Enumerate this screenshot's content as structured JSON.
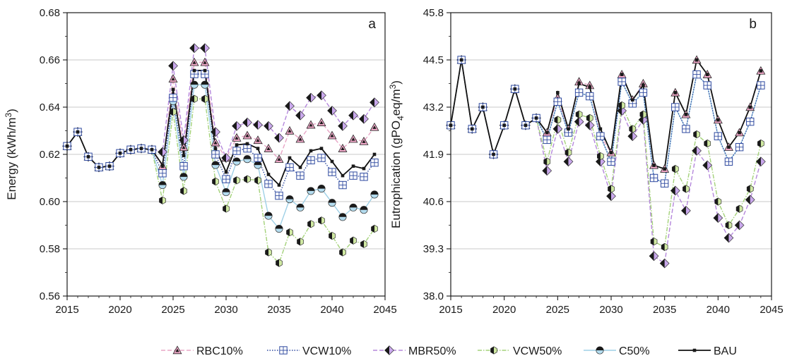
{
  "chart_data": [
    {
      "type": "line",
      "panel_label": "a",
      "title": "",
      "xlabel": "",
      "ylabel": "Energy (kWh/m3)",
      "ylabel_main": "Energy (kWh/m",
      "ylabel_sup": "3",
      "ylabel_end": ")",
      "xlim": [
        2015,
        2045
      ],
      "ylim": [
        0.56,
        0.68
      ],
      "x_ticks": [
        2015,
        2020,
        2025,
        2030,
        2035,
        2040,
        2045
      ],
      "x_tick_labels": [
        "2015",
        "2020",
        "2025",
        "2030",
        "2035",
        "2040",
        "2045"
      ],
      "y_ticks": [
        0.56,
        0.58,
        0.6,
        0.62,
        0.64,
        0.66,
        0.68
      ],
      "y_tick_labels": [
        "0.56",
        "0.58",
        "0.60",
        "0.62",
        "0.64",
        "0.66",
        "0.68"
      ],
      "grid": "horizontal",
      "x": [
        2015,
        2016,
        2017,
        2018,
        2019,
        2020,
        2021,
        2022,
        2023,
        2024,
        2025,
        2026,
        2027,
        2028,
        2029,
        2030,
        2031,
        2032,
        2033,
        2034,
        2035,
        2036,
        2037,
        2038,
        2039,
        2040,
        2041,
        2042,
        2043,
        2044
      ],
      "series": [
        {
          "name": "RBC10%",
          "values": [
            0.6235,
            0.6295,
            0.619,
            0.6145,
            0.615,
            0.6205,
            0.622,
            0.6225,
            0.622,
            0.615,
            0.652,
            0.623,
            0.659,
            0.659,
            0.625,
            0.6185,
            0.627,
            0.628,
            0.626,
            0.6225,
            0.618,
            0.63,
            0.6265,
            0.6325,
            0.6335,
            0.628,
            0.6225,
            0.6265,
            0.6255,
            0.6315
          ]
        },
        {
          "name": "VCW10%",
          "values": [
            0.6235,
            0.6295,
            0.619,
            0.6145,
            0.615,
            0.6205,
            0.622,
            0.6225,
            0.622,
            0.612,
            0.644,
            0.615,
            0.654,
            0.654,
            0.62,
            0.6095,
            0.6215,
            0.6225,
            0.6185,
            0.6075,
            0.6025,
            0.6145,
            0.611,
            0.6175,
            0.6185,
            0.6125,
            0.607,
            0.611,
            0.6105,
            0.6165
          ]
        },
        {
          "name": "MBR50%",
          "values": [
            0.6235,
            0.6295,
            0.619,
            0.6145,
            0.615,
            0.6205,
            0.622,
            0.6225,
            0.622,
            0.621,
            0.6575,
            0.626,
            0.665,
            0.665,
            0.6295,
            0.6185,
            0.632,
            0.6335,
            0.6325,
            0.632,
            0.627,
            0.6405,
            0.6365,
            0.644,
            0.645,
            0.6385,
            0.632,
            0.6365,
            0.635,
            0.642
          ]
        },
        {
          "name": "VCW50%",
          "values": [
            0.6235,
            0.6295,
            0.619,
            0.6145,
            0.615,
            0.6205,
            0.622,
            0.6225,
            0.622,
            0.6005,
            0.638,
            0.6045,
            0.6435,
            0.6435,
            0.6085,
            0.597,
            0.609,
            0.6095,
            0.609,
            0.5785,
            0.574,
            0.587,
            0.583,
            0.5905,
            0.592,
            0.5855,
            0.5785,
            0.5835,
            0.582,
            0.5885
          ]
        },
        {
          "name": "C50%",
          "values": [
            0.6235,
            0.6295,
            0.619,
            0.6145,
            0.615,
            0.6205,
            0.622,
            0.6225,
            0.622,
            0.607,
            0.6425,
            0.6105,
            0.6495,
            0.6495,
            0.6155,
            0.604,
            0.617,
            0.618,
            0.6155,
            0.594,
            0.5885,
            0.601,
            0.5975,
            0.6045,
            0.6055,
            0.5995,
            0.5935,
            0.5975,
            0.5965,
            0.603
          ]
        },
        {
          "name": "BAU",
          "values": [
            0.6235,
            0.6295,
            0.619,
            0.6145,
            0.615,
            0.6205,
            0.622,
            0.6225,
            0.622,
            0.6155,
            0.6475,
            0.6195,
            0.6555,
            0.6555,
            0.6225,
            0.6125,
            0.624,
            0.6245,
            0.6225,
            0.6115,
            0.607,
            0.6185,
            0.6145,
            0.6215,
            0.6225,
            0.617,
            0.611,
            0.615,
            0.614,
            0.62
          ]
        }
      ]
    },
    {
      "type": "line",
      "panel_label": "b",
      "title": "",
      "xlabel": "",
      "ylabel": "Eutrophication (gPO4eq/m3)",
      "ylabel_main": "Eutrophication (gPO",
      "ylabel_sub": "4",
      "ylabel_mid": "eq/m",
      "ylabel_sup": "3",
      "ylabel_end": ")",
      "xlim": [
        2015,
        2045
      ],
      "ylim": [
        38.0,
        45.8
      ],
      "x_ticks": [
        2015,
        2020,
        2025,
        2030,
        2035,
        2040,
        2045
      ],
      "x_tick_labels": [
        "2015",
        "2020",
        "2025",
        "2030",
        "2035",
        "2040",
        "2045"
      ],
      "y_ticks": [
        38.0,
        39.3,
        40.6,
        41.9,
        43.2,
        44.5,
        45.8
      ],
      "y_tick_labels": [
        "38.0",
        "39.3",
        "40.6",
        "41.9",
        "43.2",
        "44.5",
        "45.8"
      ],
      "grid": "horizontal",
      "x": [
        2015,
        2016,
        2017,
        2018,
        2019,
        2020,
        2021,
        2022,
        2023,
        2024,
        2025,
        2026,
        2027,
        2028,
        2029,
        2030,
        2031,
        2032,
        2033,
        2034,
        2035,
        2036,
        2037,
        2038,
        2039,
        2040,
        2041,
        2042,
        2043,
        2044
      ],
      "series": [
        {
          "name": "RBC10%",
          "values": [
            42.7,
            44.5,
            42.6,
            43.2,
            41.9,
            42.7,
            43.7,
            42.7,
            42.9,
            42.5,
            43.45,
            42.6,
            43.9,
            43.8,
            42.4,
            41.95,
            44.1,
            43.4,
            43.85,
            41.6,
            41.5,
            43.6,
            43.0,
            44.5,
            44.1,
            42.85,
            42.1,
            42.5,
            43.2,
            44.2
          ]
        },
        {
          "name": "VCW10%",
          "values": [
            42.7,
            44.5,
            42.6,
            43.2,
            41.9,
            42.7,
            43.7,
            42.7,
            42.9,
            42.3,
            43.35,
            42.5,
            43.6,
            43.5,
            42.4,
            41.7,
            43.9,
            43.3,
            43.6,
            41.25,
            41.1,
            43.2,
            42.6,
            44.1,
            43.8,
            42.4,
            41.7,
            42.1,
            42.8,
            43.8
          ]
        },
        {
          "name": "MBR50%",
          "values": [
            42.7,
            44.5,
            42.6,
            43.2,
            41.9,
            42.7,
            43.7,
            42.7,
            42.9,
            41.45,
            42.6,
            41.7,
            42.8,
            42.7,
            41.7,
            40.75,
            43.1,
            42.4,
            42.85,
            39.1,
            38.9,
            40.9,
            40.35,
            42.0,
            41.6,
            40.15,
            39.6,
            39.95,
            40.65,
            41.7
          ]
        },
        {
          "name": "VCW50%",
          "values": [
            42.7,
            44.5,
            42.6,
            43.2,
            41.9,
            42.7,
            43.7,
            42.7,
            42.9,
            41.7,
            42.85,
            41.95,
            43.0,
            42.9,
            41.85,
            40.95,
            43.25,
            42.6,
            43.0,
            39.5,
            39.35,
            41.5,
            40.95,
            42.45,
            42.2,
            40.6,
            39.95,
            40.4,
            40.95,
            42.2
          ]
        },
        {
          "name": "C50%",
          "values": [
            42.7,
            44.5,
            42.6,
            43.2,
            41.9,
            42.7,
            43.7,
            42.7,
            42.9,
            42.3,
            43.35,
            42.5,
            43.6,
            43.5,
            42.4,
            41.7,
            43.9,
            43.3,
            43.6,
            41.25,
            41.1,
            43.2,
            42.6,
            44.1,
            43.8,
            42.4,
            41.7,
            42.1,
            42.8,
            43.8
          ]
        },
        {
          "name": "BAU",
          "values": [
            42.7,
            44.5,
            42.6,
            43.2,
            41.9,
            42.7,
            43.7,
            42.7,
            42.9,
            42.5,
            43.6,
            42.6,
            43.85,
            43.75,
            42.6,
            41.95,
            44.1,
            43.4,
            43.8,
            41.6,
            41.5,
            43.6,
            43.0,
            44.5,
            44.1,
            42.85,
            42.1,
            42.5,
            43.2,
            44.2
          ]
        }
      ]
    }
  ],
  "legend": {
    "position": "bottom",
    "items": [
      {
        "label": "RBC10%",
        "line_color": "#e8a6c6",
        "dash": "6,3",
        "marker": "triangle",
        "marker_fill": "#f0a8c8"
      },
      {
        "label": "VCW10%",
        "line_color": "#2f4aa0",
        "dash": "1.5,2",
        "marker": "square-cross",
        "marker_fill": "#ffffff"
      },
      {
        "label": "MBR50%",
        "line_color": "#b588dc",
        "dash": "6,3",
        "marker": "diamond-half",
        "marker_fill": "#c9a8ec"
      },
      {
        "label": "VCW50%",
        "line_color": "#a4d27a",
        "dash": "6,2,1.5,2",
        "marker": "hexagon-half",
        "marker_fill": "#cfe8a2"
      },
      {
        "label": "C50%",
        "line_color": "#9ed0e6",
        "dash": "",
        "marker": "circle-half",
        "marker_fill": "#b3dcef"
      },
      {
        "label": "BAU",
        "line_color": "#111111",
        "dash": "",
        "marker": "small-square",
        "marker_fill": "#111111"
      }
    ]
  },
  "colors": {
    "axis": "#1a1a1a",
    "grid": "#c8c8c8"
  }
}
